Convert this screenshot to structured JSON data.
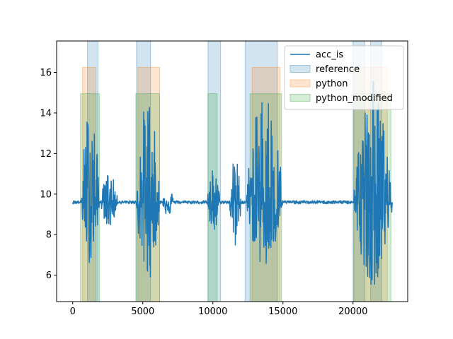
{
  "chart_data": {
    "type": "line",
    "title": "",
    "xlabel": "",
    "ylabel": "",
    "xlim": [
      -1150,
      23900
    ],
    "ylim": [
      4.7,
      17.55
    ],
    "xticks": [
      0,
      5000,
      10000,
      15000,
      20000
    ],
    "yticks": [
      6,
      8,
      10,
      12,
      14,
      16
    ],
    "grid": false,
    "legend_position": "top-right",
    "series": [
      {
        "name": "acc_is",
        "color": "#1f77b4",
        "baseline": 9.6,
        "x_end": 22800,
        "active_segments": [
          {
            "x": [
              600,
              1900
            ],
            "y_range": [
              6.4,
              15.2
            ]
          },
          {
            "x": [
              2000,
              3200
            ],
            "y_range": [
              8.2,
              11.3
            ]
          },
          {
            "x": [
              4500,
              6200
            ],
            "y_range": [
              5.3,
              15.5
            ]
          },
          {
            "x": [
              6400,
              7200
            ],
            "y_range": [
              8.8,
              10.6
            ]
          },
          {
            "x": [
              9600,
              10500
            ],
            "y_range": [
              7.6,
              11.5
            ]
          },
          {
            "x": [
              11200,
              12000
            ],
            "y_range": [
              6.8,
              12.3
            ]
          },
          {
            "x": [
              12400,
              15000
            ],
            "y_range": [
              5.9,
              15.9
            ]
          },
          {
            "x": [
              20000,
              22800
            ],
            "y_range": [
              5.2,
              16.0
            ]
          }
        ]
      }
    ],
    "spans": [
      {
        "name": "reference",
        "color": "#1f77b4",
        "y_range": [
          4.7,
          17.55
        ],
        "intervals": [
          [
            1050,
            1800
          ],
          [
            4550,
            5550
          ],
          [
            9650,
            10550
          ],
          [
            12300,
            14600
          ],
          [
            20000,
            20850
          ],
          [
            21250,
            22050
          ]
        ]
      },
      {
        "name": "python",
        "color": "#ff7f0e",
        "y_range": [
          4.7,
          16.25
        ],
        "intervals": [
          [
            700,
            1650
          ],
          [
            4650,
            6200
          ],
          [
            12800,
            14800
          ],
          [
            20050,
            22450
          ]
        ]
      },
      {
        "name": "python_modified",
        "color": "#2ca02c",
        "y_range": [
          4.7,
          14.95
        ],
        "intervals": [
          [
            550,
            1900
          ],
          [
            4500,
            6200
          ],
          [
            9650,
            10300
          ],
          [
            12650,
            14900
          ],
          [
            20050,
            22700
          ]
        ]
      }
    ]
  }
}
